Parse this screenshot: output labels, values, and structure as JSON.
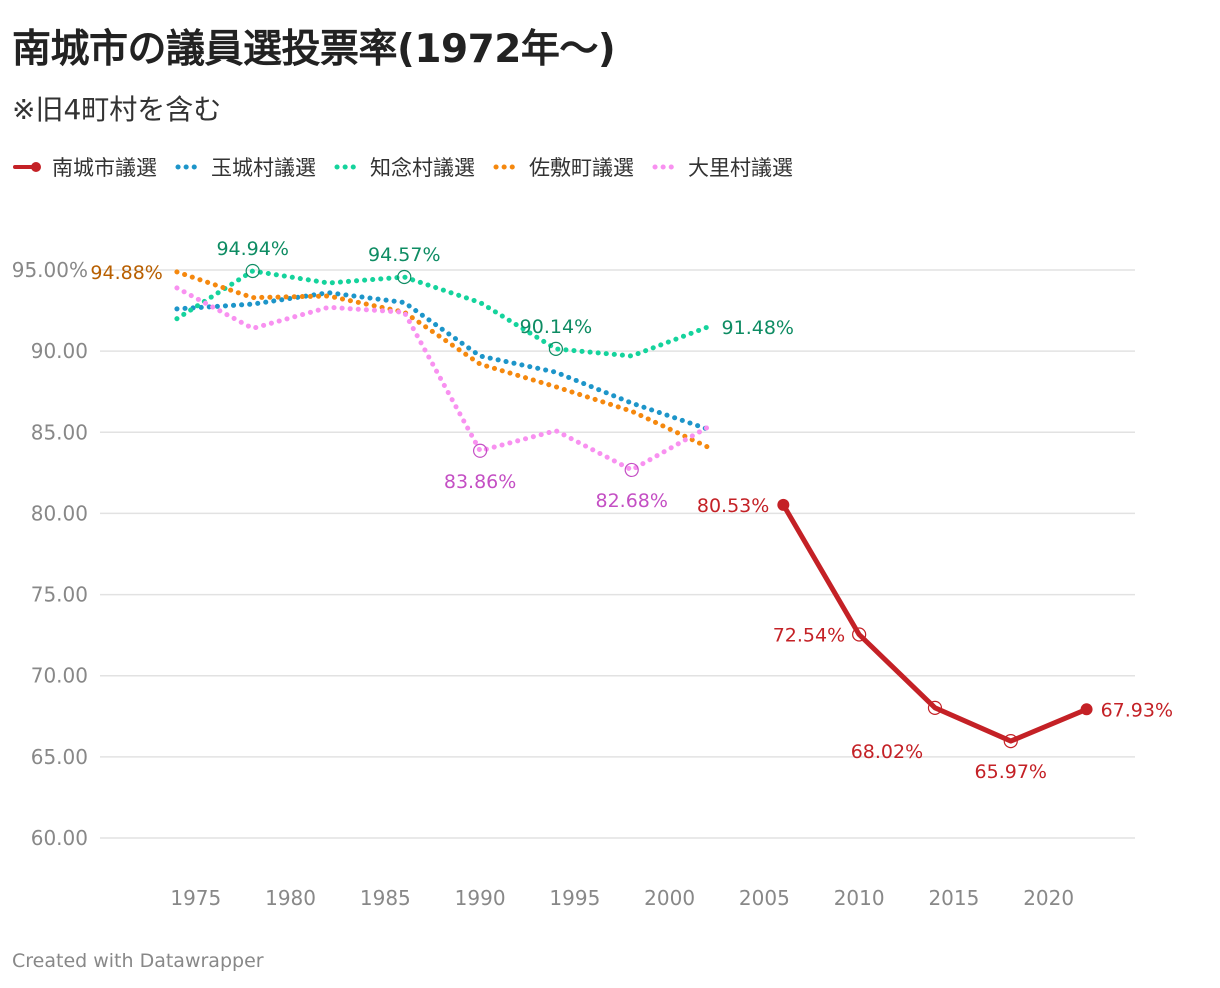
{
  "title": "南城市の議員選投票率(1972年〜)",
  "subtitle": "※旧4町村を含む",
  "footer": "Created with Datawrapper",
  "chart_data": {
    "type": "line",
    "ylim": [
      60,
      95
    ],
    "y_ticks": [
      {
        "value": 95,
        "label": "95.00%"
      },
      {
        "value": 90,
        "label": "90.00"
      },
      {
        "value": 85,
        "label": "85.00"
      },
      {
        "value": 80,
        "label": "80.00"
      },
      {
        "value": 75,
        "label": "75.00"
      },
      {
        "value": 70,
        "label": "70.00"
      },
      {
        "value": 65,
        "label": "65.00"
      },
      {
        "value": 60,
        "label": "60.00"
      }
    ],
    "x_ticks": [
      "1975",
      "1980",
      "1985",
      "1990",
      "1995",
      "2000",
      "2005",
      "2010",
      "2015",
      "2020"
    ],
    "series": [
      {
        "name": "南城市議選",
        "color": "#c42126",
        "style": "solid",
        "x": [
          2006,
          2010,
          2014,
          2018,
          2022
        ],
        "values": [
          80.53,
          72.54,
          68.02,
          65.97,
          67.93
        ],
        "labels": [
          {
            "x": 2006,
            "y": 80.53,
            "text": "80.53%",
            "pos": "left"
          },
          {
            "x": 2010,
            "y": 72.54,
            "text": "72.54%",
            "pos": "left"
          },
          {
            "x": 2014,
            "y": 68.02,
            "text": "68.02%",
            "pos": "below-left"
          },
          {
            "x": 2018,
            "y": 65.97,
            "text": "65.97%",
            "pos": "below"
          },
          {
            "x": 2022,
            "y": 67.93,
            "text": "67.93%",
            "pos": "right"
          }
        ]
      },
      {
        "name": "玉城村議選",
        "color": "#1d95c9",
        "style": "dotted",
        "x": [
          1974,
          1978,
          1982,
          1986,
          1990,
          1994,
          1998,
          2002
        ],
        "values": [
          92.6,
          92.9,
          93.6,
          93.0,
          89.7,
          88.7,
          86.8,
          85.2
        ],
        "labels": []
      },
      {
        "name": "知念村議選",
        "color": "#15d39c",
        "label_color": "#0e8c63",
        "style": "dotted",
        "x": [
          1974,
          1978,
          1982,
          1986,
          1990,
          1994,
          1998,
          2002
        ],
        "values": [
          92.0,
          94.94,
          94.2,
          94.57,
          93.0,
          90.14,
          89.7,
          91.48
        ],
        "labels": [
          {
            "x": 1978,
            "y": 94.94,
            "text": "94.94%",
            "pos": "above"
          },
          {
            "x": 1986,
            "y": 94.57,
            "text": "94.57%",
            "pos": "above"
          },
          {
            "x": 1994,
            "y": 90.14,
            "text": "90.14%",
            "pos": "above"
          },
          {
            "x": 2002,
            "y": 91.48,
            "text": "91.48%",
            "pos": "right"
          }
        ]
      },
      {
        "name": "佐敷町議選",
        "color": "#f5880e",
        "label_color": "#b85f00",
        "style": "dotted",
        "x": [
          1974,
          1978,
          1982,
          1986,
          1990,
          1994,
          1998,
          2002
        ],
        "values": [
          94.88,
          93.3,
          93.4,
          92.4,
          89.2,
          87.8,
          86.3,
          84.1
        ],
        "labels": [
          {
            "x": 1974,
            "y": 94.88,
            "text": "94.88%",
            "pos": "left"
          }
        ]
      },
      {
        "name": "大里村議選",
        "color": "#f891f0",
        "label_color": "#c44fc4",
        "style": "dotted",
        "x": [
          1974,
          1978,
          1982,
          1986,
          1990,
          1994,
          1998,
          2002
        ],
        "values": [
          93.9,
          91.4,
          92.7,
          92.4,
          83.86,
          85.1,
          82.68,
          85.3
        ],
        "labels": [
          {
            "x": 1990,
            "y": 83.86,
            "text": "83.86%",
            "pos": "below"
          },
          {
            "x": 1998,
            "y": 82.68,
            "text": "82.68%",
            "pos": "below"
          }
        ]
      }
    ]
  }
}
